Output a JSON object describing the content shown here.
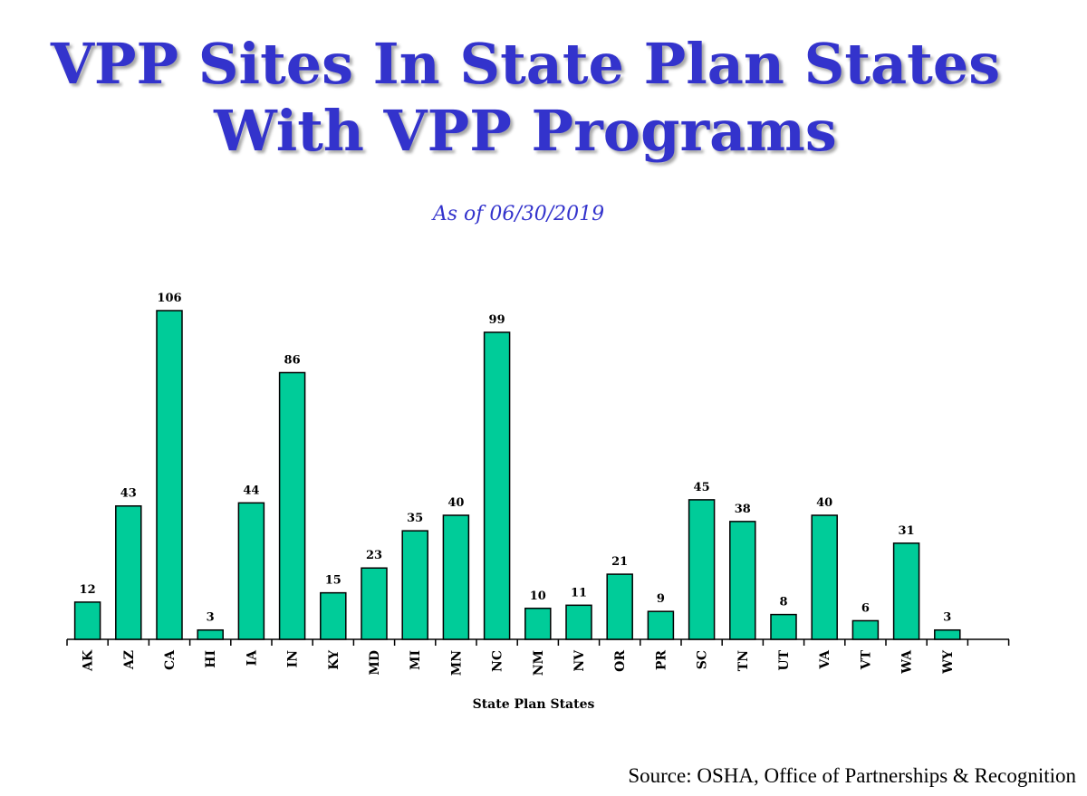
{
  "header": {
    "title_line1": "VPP Sites In State Plan States",
    "title_line2": "With VPP Programs",
    "subtitle": "As of 06/30/2019"
  },
  "footer": {
    "source": "Source:  OSHA, Office of Partnerships & Recognition"
  },
  "colors": {
    "title": "#3333cc",
    "bar": "#00cc99",
    "bar_outline": "#000000"
  },
  "chart_data": {
    "type": "bar",
    "title": "VPP Sites In State Plan States With VPP Programs",
    "subtitle": "As of 06/30/2019",
    "xlabel": "State Plan States",
    "ylabel": "",
    "categories": [
      "AK",
      "AZ",
      "CA",
      "HI",
      "IA",
      "IN",
      "KY",
      "MD",
      "MI",
      "MN",
      "NC",
      "NM",
      "NV",
      "OR",
      "PR",
      "SC",
      "TN",
      "UT",
      "VA",
      "VT",
      "WA",
      "WY"
    ],
    "values": [
      12,
      43,
      106,
      3,
      44,
      86,
      15,
      23,
      35,
      40,
      99,
      10,
      11,
      21,
      9,
      45,
      38,
      8,
      40,
      6,
      31,
      3
    ],
    "ylim": [
      0,
      106
    ],
    "grid": false,
    "data_labels": true
  }
}
